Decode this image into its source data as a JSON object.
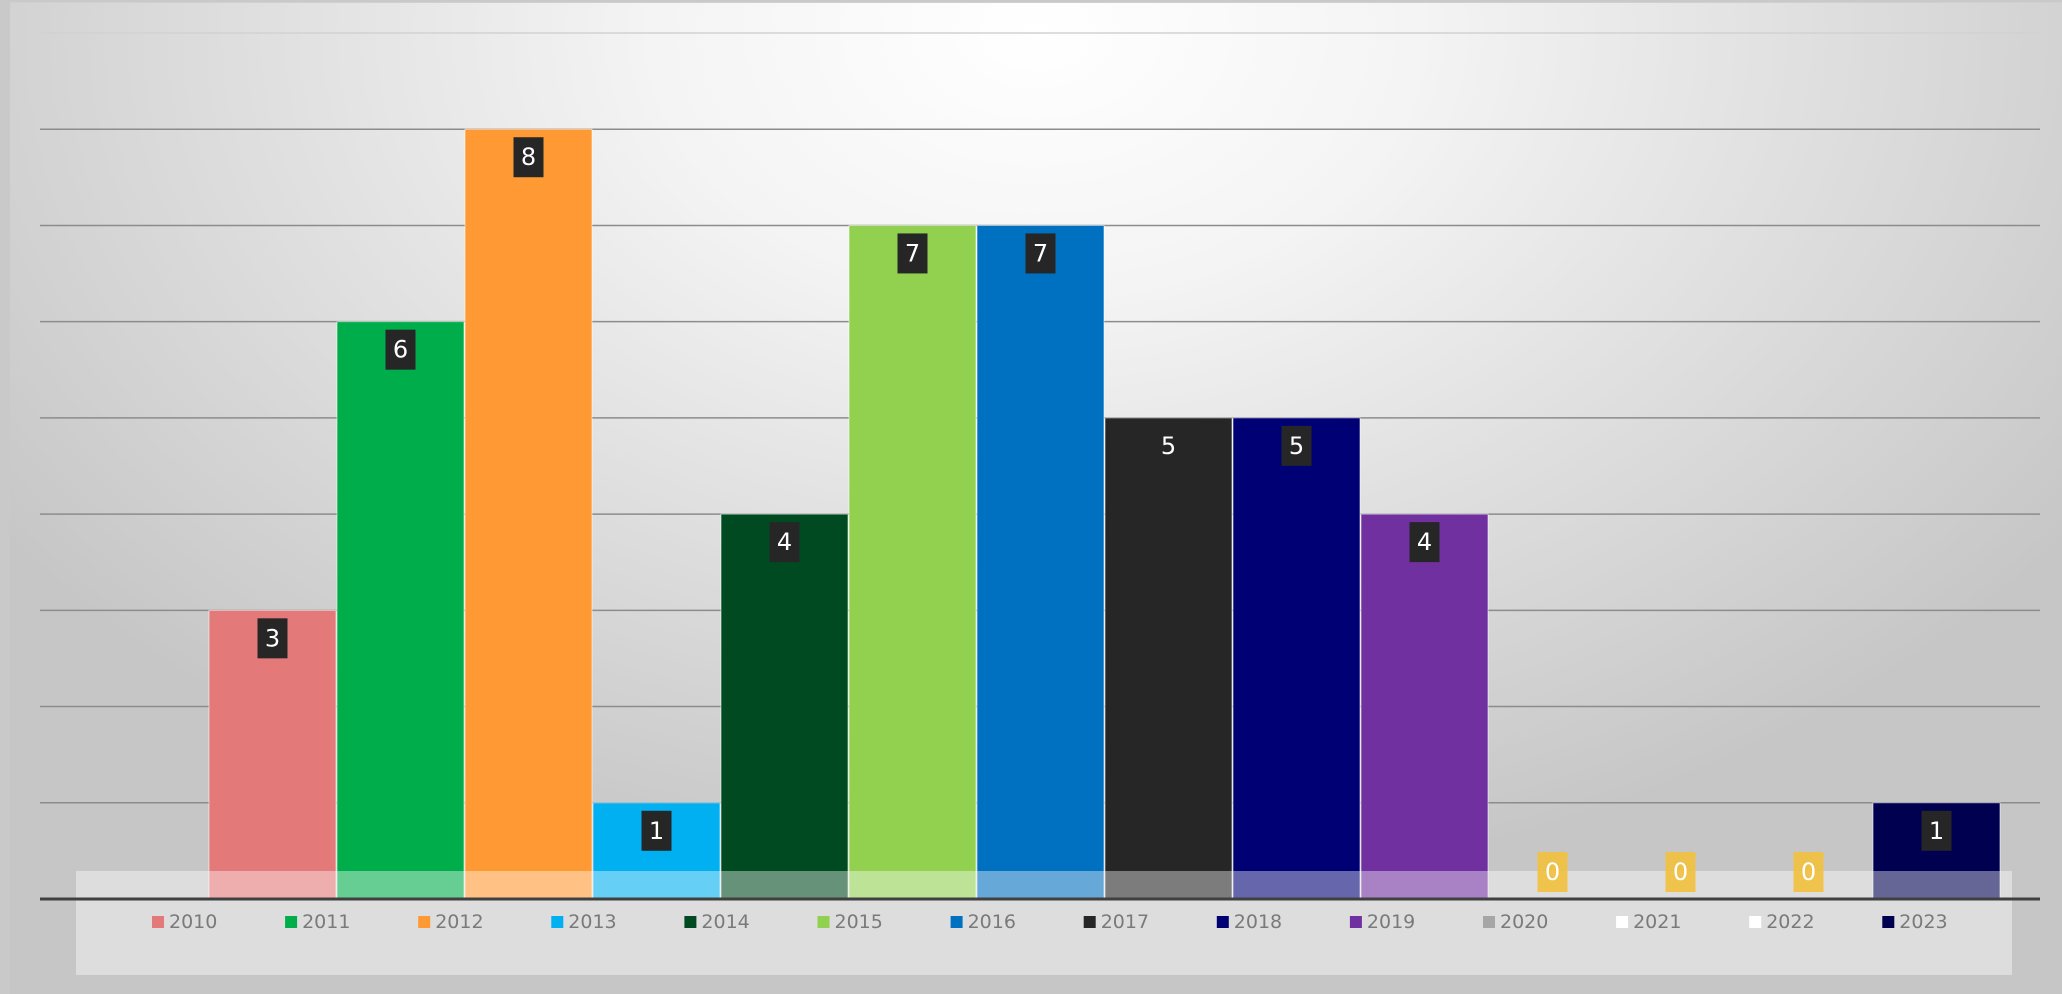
{
  "chart_data": {
    "type": "bar",
    "title": "",
    "xlabel": "",
    "ylabel": "",
    "ylim": [
      0,
      9
    ],
    "gridlines": true,
    "legend_position": "bottom",
    "series": [
      {
        "name": "2010",
        "value": 3,
        "color": "#e37979",
        "label_style": "boxed"
      },
      {
        "name": "2011",
        "value": 6,
        "color": "#00ad4b",
        "label_style": "boxed"
      },
      {
        "name": "2012",
        "value": 8,
        "color": "#ff9933",
        "label_style": "boxed"
      },
      {
        "name": "2013",
        "value": 1,
        "color": "#00b0f0",
        "label_style": "boxed"
      },
      {
        "name": "2014",
        "value": 4,
        "color": "#004a21",
        "label_style": "boxed"
      },
      {
        "name": "2015",
        "value": 7,
        "color": "#92d050",
        "label_style": "boxed"
      },
      {
        "name": "2016",
        "value": 7,
        "color": "#0070c0",
        "label_style": "boxed"
      },
      {
        "name": "2017",
        "value": 5,
        "color": "#262626",
        "label_style": "plain"
      },
      {
        "name": "2018",
        "value": 5,
        "color": "#000075",
        "label_style": "boxed"
      },
      {
        "name": "2019",
        "value": 4,
        "color": "#7030a0",
        "label_style": "boxed"
      },
      {
        "name": "2020",
        "value": 0,
        "color": "#a6a6a6",
        "label_style": "zero"
      },
      {
        "name": "2021",
        "value": 0,
        "color": "#ffffff",
        "label_style": "zero"
      },
      {
        "name": "2022",
        "value": 0,
        "color": "#ffffff",
        "label_style": "zero"
      },
      {
        "name": "2023",
        "value": 1,
        "color": "#000050",
        "label_style": "boxed"
      }
    ],
    "label_box_color": "#262626",
    "zero_label_color": "#f2c03d"
  }
}
